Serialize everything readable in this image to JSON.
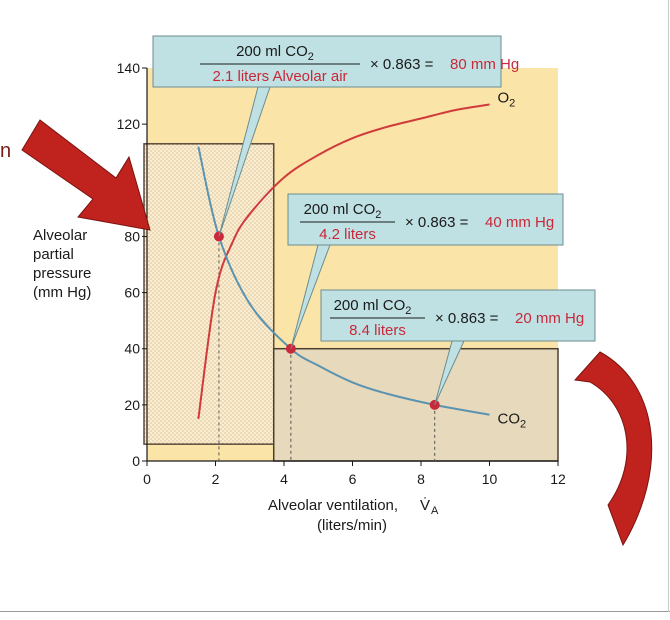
{
  "chart_data": {
    "type": "line",
    "xlabel": "Alveolar ventilation,",
    "xlabel_symbol": "V̇",
    "xlabel_subscript": "A",
    "xlabel_units": "(liters/min)",
    "ylabel_lines": [
      "Alveolar",
      "partial",
      "pressure",
      "(mm Hg)"
    ],
    "xlim": [
      0,
      12
    ],
    "ylim": [
      0,
      140
    ],
    "x_ticks": [
      0,
      2,
      4,
      6,
      8,
      10,
      12
    ],
    "y_ticks": [
      0,
      20,
      40,
      60,
      80,
      120,
      140
    ],
    "series": [
      {
        "name": "O",
        "name_subscript": "2",
        "color": "#d03a3c",
        "x": [
          1.5,
          2.0,
          2.5,
          3.0,
          4.0,
          5.0,
          6.0,
          7.0,
          8.0,
          9.0,
          10.0
        ],
        "values": [
          15,
          60,
          78,
          88,
          101,
          109,
          115,
          119,
          122,
          125,
          127
        ]
      },
      {
        "name": "CO",
        "name_subscript": "2",
        "color": "#5b93b0",
        "x": [
          1.5,
          2.1,
          3.0,
          4.2,
          5.0,
          6.0,
          7.0,
          8.4,
          10.0
        ],
        "values": [
          112,
          80,
          56,
          40,
          34,
          28,
          24,
          20,
          16.5
        ]
      }
    ],
    "highlight_points": [
      {
        "x": 2.1,
        "y": 80
      },
      {
        "x": 4.2,
        "y": 40
      },
      {
        "x": 8.4,
        "y": 20
      }
    ],
    "annotations": [
      {
        "numerator": "200 ml CO",
        "numerator_sub": "2",
        "denominator": "2.1 liters Alveolar air",
        "operator": "× 0.863 =",
        "result": "80 mm Hg",
        "points_to": {
          "x": 2.1,
          "y": 80
        }
      },
      {
        "numerator": "200 ml CO",
        "numerator_sub": "2",
        "denominator": "4.2 liters",
        "operator": "× 0.863 =",
        "result": "40 mm Hg",
        "points_to": {
          "x": 4.2,
          "y": 40
        }
      },
      {
        "numerator": "200 ml CO",
        "numerator_sub": "2",
        "denominator": "8.4 liters",
        "operator": "× 0.863 =",
        "result": "20 mm Hg",
        "points_to": {
          "x": 8.4,
          "y": 20
        }
      }
    ],
    "colors": {
      "plot_background": "#fbe4a8",
      "highlight_red": "#c8283a",
      "callout_fill": "#bfe1e3",
      "shaded_region": "#e7d9bb",
      "arrow_red": "#c0221d"
    },
    "grid": false,
    "highlighted_regions": [
      {
        "x_range": [
          0,
          3.7
        ],
        "y_range": [
          6,
          113
        ],
        "style": "dotted"
      },
      {
        "x_range": [
          3.7,
          12
        ],
        "y_range": [
          0,
          40
        ],
        "style": "tinted"
      }
    ]
  },
  "cut_off_text": "n"
}
